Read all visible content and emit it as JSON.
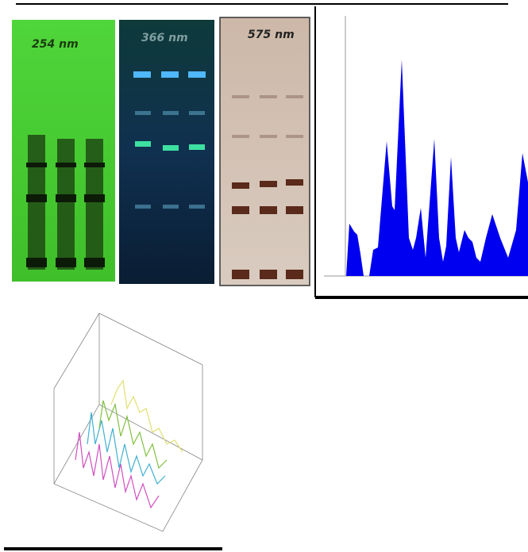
{
  "panels": {
    "plate_254": {
      "label": "254 nm"
    },
    "plate_366": {
      "label": "366 nm"
    },
    "plate_575": {
      "label": "575 nm"
    }
  }
}
